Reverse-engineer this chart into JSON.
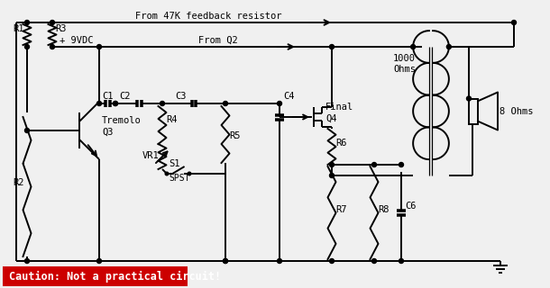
{
  "bg_color": "#f0f0f0",
  "line_color": "#000000",
  "caution_bg": "#cc0000",
  "caution_text": "Caution: Not a practical circuit!",
  "caution_text_color": "#ffffff",
  "labels": {
    "feedback": "From 47K feedback resistor",
    "vdc": "+ 9VDC",
    "from_q2": "From Q2",
    "c1": "C1",
    "c2": "C2",
    "c3": "C3",
    "c4": "C4",
    "r1": "R1",
    "r2": "R2",
    "r3": "R3",
    "r4": "R4",
    "r5": "R5",
    "r6": "R6",
    "r7": "R7",
    "r8": "R8",
    "vr1": "VR1",
    "s1": "S1",
    "spst": "SPST",
    "c6": "C6",
    "tremolo": "Tremolo",
    "q3": "Q3",
    "final": "Final",
    "q4": "Q4",
    "ohms1000": "1000",
    "ohms1000b": "Ohms",
    "ohms8": "8 Ohms"
  }
}
